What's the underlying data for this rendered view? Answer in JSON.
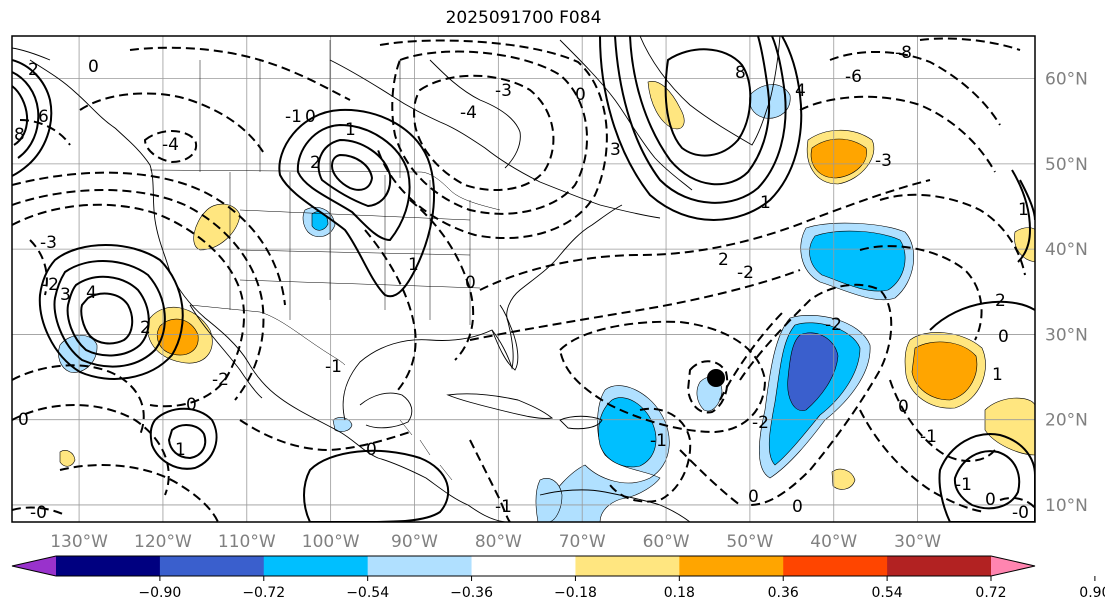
{
  "title": "2025091700 F084",
  "map": {
    "projection": "cylindrical",
    "lon_range": [
      -138,
      -16
    ],
    "lat_range": [
      8,
      65
    ],
    "lon_ticks": [
      "130°W",
      "120°W",
      "110°W",
      "100°W",
      "90°W",
      "80°W",
      "70°W",
      "60°W",
      "50°W",
      "40°W",
      "30°W"
    ],
    "lat_ticks": [
      "60°N",
      "50°N",
      "40°N",
      "30°N",
      "20°N",
      "10°N"
    ],
    "gridlines": true,
    "marker": {
      "lon": -56.2,
      "lat": 24.8,
      "icon": "black-dot-icon"
    }
  },
  "colorbar": {
    "orientation": "horizontal",
    "extend": "both",
    "ticks": [
      "−0.90",
      "−0.72",
      "−0.54",
      "−0.36",
      "−0.18",
      "0.18",
      "0.36",
      "0.54",
      "0.72",
      "0.90"
    ],
    "colors": [
      "#9932cc",
      "#000080",
      "#3a5fcd",
      "#00bfff",
      "#b0e0ff",
      "#ffffff",
      "#ffe680",
      "#ffa500",
      "#ff4500",
      "#b22222",
      "#ff85b0"
    ]
  },
  "contour_labels": {
    "positive": [
      "2",
      "3",
      "4",
      "1",
      "1",
      "2",
      "6",
      "8",
      "2",
      "1",
      "1",
      "1",
      "1",
      "0",
      "0",
      "0",
      "0"
    ],
    "negative": [
      "-1",
      "-1",
      "-2",
      "-3",
      "-4",
      "-2",
      "-1",
      "-1",
      "-2",
      "-2",
      "-3",
      "-6",
      "-8",
      "-1",
      "-0",
      "-0",
      "-1"
    ]
  }
}
